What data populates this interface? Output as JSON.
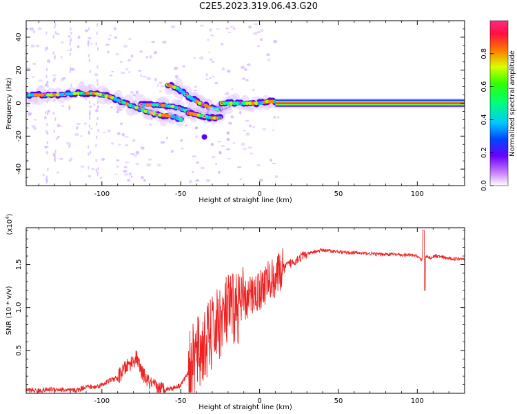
{
  "title": "C2E5.2023.319.06.43.G20",
  "chart_data": [
    {
      "type": "heatmap",
      "xlabel": "Height of straight line (km)",
      "ylabel": "Frequency (Hz)",
      "xlim": [
        -148,
        130
      ],
      "ylim": [
        -50,
        50
      ],
      "x_ticks": [
        -100,
        -50,
        0,
        50,
        100
      ],
      "y_ticks": [
        -40,
        -20,
        0,
        20,
        40
      ],
      "colorbar": {
        "label": "Normalized spectral amplitude",
        "range": [
          0,
          1
        ],
        "ticks": [
          "0.0",
          "0.2",
          "0.4",
          "0.6",
          "0.8"
        ]
      },
      "ridges": [
        {
          "x": [
            -148,
            -130,
            -115,
            -105,
            -95,
            -88,
            -80,
            -72,
            -65,
            -55,
            -50
          ],
          "y": [
            5,
            5,
            6,
            6,
            4,
            1,
            -2,
            -5,
            -7,
            -8,
            -10
          ]
        },
        {
          "x": [
            -75,
            -65,
            -55,
            -45,
            -35,
            -28,
            -25,
            -20
          ],
          "y": [
            -1,
            -1,
            -2,
            -5,
            -7,
            -6,
            -3,
            -1
          ]
        },
        {
          "x": [
            -58,
            -52,
            -45,
            -38,
            -30,
            -25
          ],
          "y": [
            11,
            9,
            4,
            0,
            -3,
            -4
          ]
        },
        {
          "x": [
            -45,
            -40,
            -35,
            -30,
            -25
          ],
          "y": [
            -6,
            -7,
            -8,
            -9,
            -9
          ]
        },
        {
          "x": [
            -24,
            -18,
            -10,
            0,
            5,
            10
          ],
          "y": [
            0,
            0,
            0,
            0,
            1,
            1
          ]
        },
        {
          "x": [
            10,
            40,
            80,
            130
          ],
          "y": [
            0,
            0,
            0,
            0
          ]
        }
      ]
    },
    {
      "type": "line",
      "xlabel": "Height of straight line (km)",
      "ylabel": "SNR (10 * v/v)",
      "y_multiplier": "(x10",
      "y_multiplier_exp": "4",
      "y_multiplier_close": ")",
      "xlim": [
        -148,
        130
      ],
      "ylim": [
        0,
        1.93
      ],
      "x_ticks": [
        -100,
        -50,
        0,
        50,
        100
      ],
      "y_ticks": [
        0.5,
        1.0,
        1.5
      ],
      "y_tick_labels": [
        "0.5",
        "1.0",
        "1.5"
      ],
      "series": [
        {
          "color": "#ee2020",
          "x": [
            -148,
            -140,
            -130,
            -120,
            -115,
            -110,
            -105,
            -100,
            -95,
            -90,
            -85,
            -80,
            -78,
            -75,
            -70,
            -65,
            -60,
            -55,
            -50,
            -45,
            -40,
            -35,
            -30,
            -25,
            -20,
            -15,
            -10,
            -5,
            0,
            5,
            10,
            15,
            20,
            25,
            30,
            35,
            40,
            45,
            50,
            55,
            60,
            65,
            70,
            75,
            80,
            85,
            90,
            95,
            100,
            103,
            104,
            105,
            108,
            112,
            120,
            130
          ],
          "y": [
            0.04,
            0.03,
            0.05,
            0.03,
            0.04,
            0.08,
            0.07,
            0.1,
            0.15,
            0.18,
            0.3,
            0.38,
            0.42,
            0.25,
            0.12,
            0.06,
            0.05,
            0.06,
            0.1,
            0.25,
            0.45,
            0.55,
            0.7,
            0.85,
            0.95,
            1.0,
            1.05,
            1.15,
            1.2,
            1.3,
            1.35,
            1.45,
            1.52,
            1.58,
            1.62,
            1.65,
            1.67,
            1.66,
            1.65,
            1.64,
            1.64,
            1.63,
            1.63,
            1.62,
            1.62,
            1.62,
            1.61,
            1.61,
            1.6,
            1.55,
            1.9,
            1.6,
            1.58,
            1.6,
            1.57,
            1.57
          ]
        }
      ]
    }
  ]
}
